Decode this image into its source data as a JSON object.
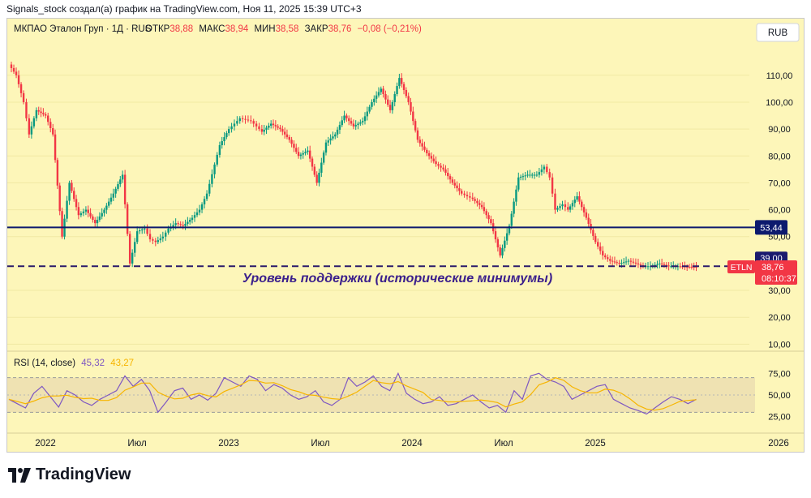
{
  "header_text": "Signals_stock создал(а) график на TradingView.com, Ноя 11, 2025 15:39 UTC+3",
  "legend": {
    "symbol": "МКПАО Эталон Груп · 1Д · RUS",
    "open_label": "ОТКР",
    "open": "38,88",
    "high_label": "МАКС",
    "high": "38,94",
    "low_label": "МИН",
    "low": "38,58",
    "close_label": "ЗАКР",
    "close": "38,76",
    "change": "−0,08 (−0,21%)"
  },
  "currency": "RUB",
  "price_axis": {
    "ticks": [
      {
        "value": 110,
        "label": "110,00"
      },
      {
        "value": 100,
        "label": "100,00"
      },
      {
        "value": 90,
        "label": "90,00"
      },
      {
        "value": 80,
        "label": "80,00"
      },
      {
        "value": 70,
        "label": "70,00"
      },
      {
        "value": 60,
        "label": "60,00"
      },
      {
        "value": 50,
        "label": "50,00"
      },
      {
        "value": 30,
        "label": "30,00"
      },
      {
        "value": 20,
        "label": "20,00"
      },
      {
        "value": 10,
        "label": "10,00"
      }
    ]
  },
  "levels": {
    "resistance": {
      "value": 53.44,
      "label": "53,44",
      "color": "#0d1a6e"
    },
    "support": {
      "value": 39.0,
      "label": "39,00",
      "color": "#2a1a6b"
    },
    "support_text": "Уровень поддержки (исторические минимумы)"
  },
  "last_price": {
    "ticker": "ETLN",
    "price": "38,76",
    "countdown": "08:10:37",
    "value": 38.76
  },
  "time_axis": {
    "labels": [
      {
        "t": 0.0,
        "label": "2022"
      },
      {
        "t": 0.5,
        "label": "Июл"
      },
      {
        "t": 1.0,
        "label": "2023"
      },
      {
        "t": 1.5,
        "label": "Июл"
      },
      {
        "t": 2.0,
        "label": "2024"
      },
      {
        "t": 2.5,
        "label": "Июл"
      },
      {
        "t": 3.0,
        "label": "2025"
      },
      {
        "t": 4.0,
        "label": "2026"
      }
    ]
  },
  "rsi": {
    "title": "RSI (14, close)",
    "value1": "45,32",
    "value2": "43,27",
    "ticks": [
      {
        "value": 75,
        "label": "75,00"
      },
      {
        "value": 50,
        "label": "50,00"
      },
      {
        "value": 25,
        "label": "25,00"
      }
    ],
    "upper_band": 70,
    "lower_band": 30
  },
  "colors": {
    "background": "#fdf6b9",
    "up": "#089981",
    "down": "#f23645",
    "rsi_line": "#7e57c2",
    "rsi_ma": "#f7b500",
    "rsi_band": "#efe2b2",
    "last_price": "#f23645"
  },
  "chart_data": {
    "type": "line",
    "title": "МКПАО Эталон Груп · 1Д · RUS",
    "xlabel": "",
    "ylabel": "",
    "ylim": [
      8,
      122
    ],
    "series": [
      {
        "name": "Price",
        "x": [
          0.0,
          0.04,
          0.08,
          0.11,
          0.15,
          0.2,
          0.24,
          0.29,
          0.33,
          0.38,
          0.42,
          0.47,
          0.52,
          0.57,
          0.62,
          0.66,
          0.7,
          0.74,
          0.77,
          0.8,
          0.84,
          0.87,
          0.91,
          0.95,
          1.0,
          1.04,
          1.08,
          1.15,
          1.2,
          1.26,
          1.32,
          1.38,
          1.43,
          1.48,
          1.53,
          1.58,
          1.63,
          1.68,
          1.73,
          1.78,
          1.83,
          1.88,
          1.93,
          1.98,
          2.03,
          2.08,
          2.13,
          2.18,
          2.23,
          2.28,
          2.33,
          2.37,
          2.42,
          2.47,
          2.53,
          2.58,
          2.63,
          2.68,
          2.73,
          2.78,
          2.83,
          2.88,
          2.92,
          2.95,
          2.98,
          3.02,
          3.05,
          3.1,
          3.15,
          3.2,
          3.24,
          3.28,
          3.33,
          3.38,
          3.42,
          3.46,
          3.5,
          3.55,
          3.6,
          3.65,
          3.7,
          3.75
        ],
        "y": [
          114,
          110,
          100,
          88,
          97,
          95,
          88,
          50,
          70,
          58,
          60,
          55,
          60,
          66,
          73,
          40,
          52,
          53,
          49,
          48,
          50,
          53,
          55,
          54,
          57,
          60,
          66,
          84,
          90,
          94,
          93,
          89,
          92,
          90,
          86,
          80,
          82,
          70,
          85,
          88,
          95,
          91,
          93,
          100,
          105,
          97,
          109,
          100,
          86,
          81,
          77,
          75,
          70,
          66,
          64,
          61,
          55,
          43,
          54,
          72,
          73,
          73,
          76,
          72,
          60,
          62,
          60,
          65,
          57,
          48,
          43,
          41,
          40,
          41,
          40,
          39,
          39,
          40,
          39,
          39,
          38.8,
          38.76
        ]
      }
    ],
    "rsi_values": [
      45,
      40,
      35,
      52,
      60,
      48,
      36,
      55,
      50,
      42,
      38,
      45,
      50,
      55,
      72,
      60,
      68,
      55,
      30,
      42,
      55,
      58,
      45,
      50,
      44,
      52,
      70,
      65,
      60,
      72,
      68,
      55,
      62,
      58,
      50,
      45,
      48,
      55,
      42,
      38,
      45,
      70,
      60,
      65,
      72,
      60,
      55,
      75,
      52,
      45,
      40,
      42,
      48,
      38,
      40,
      45,
      50,
      42,
      35,
      38,
      30,
      55,
      45,
      72,
      75,
      68,
      65,
      60,
      45,
      50,
      55,
      60,
      62,
      45,
      40,
      35,
      32,
      28,
      35,
      42,
      48,
      45,
      40,
      45
    ]
  }
}
